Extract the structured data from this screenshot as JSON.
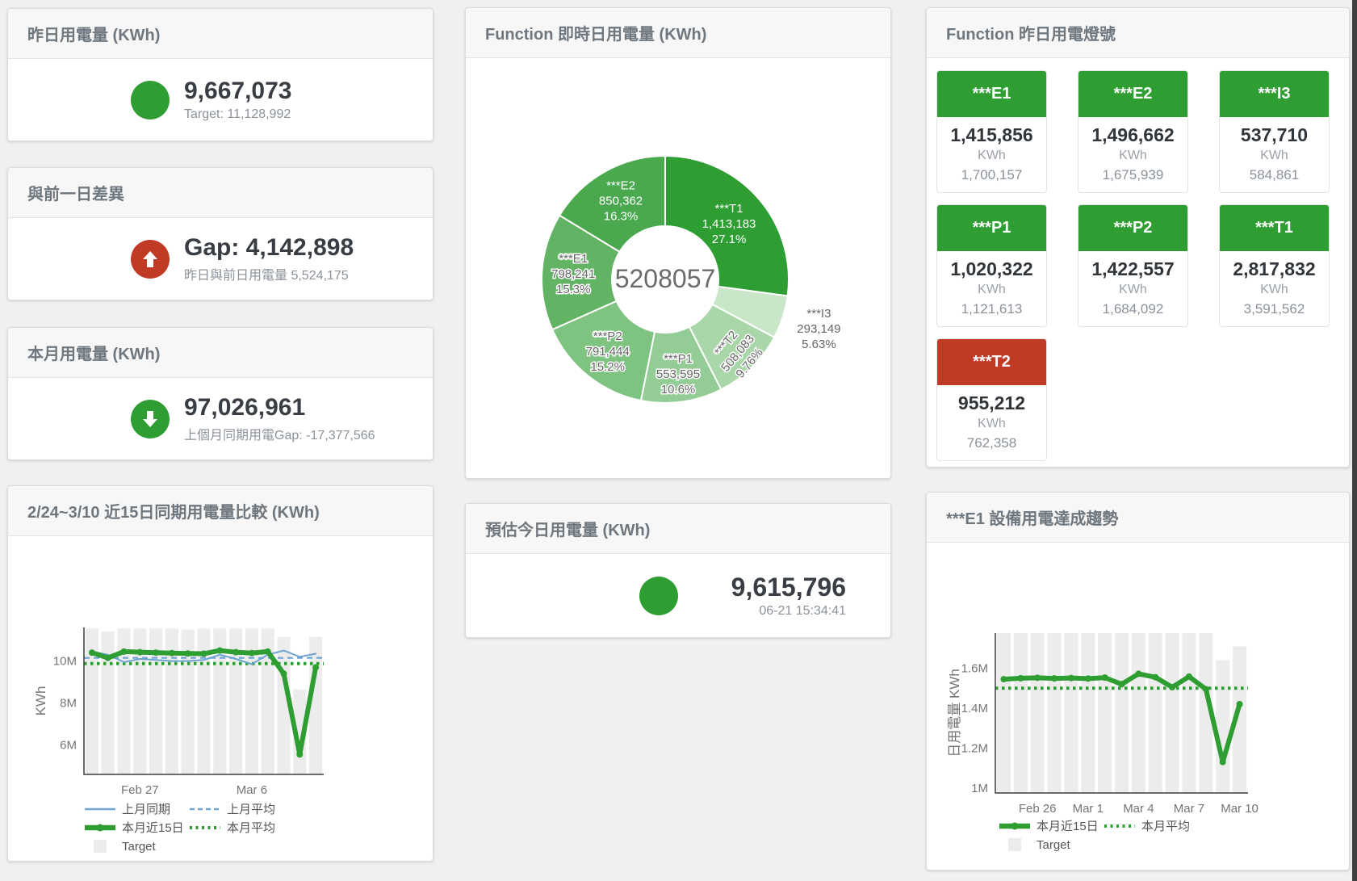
{
  "page": {
    "background": "#f0f0f0",
    "scrollbar_color": "#3f3f3f"
  },
  "colors": {
    "green": "#2e9d32",
    "red": "#c03a25",
    "bar": "#ececec",
    "blue": "#6fa3d0",
    "big_number": "#393e44",
    "subtitle": "#8b929a"
  },
  "cards": {
    "yesterday": {
      "title": "昨日用電量 (KWh)",
      "value": "9,667,073",
      "subtitle": "Target: 11,128,992",
      "status": "green"
    },
    "gap_prev_day": {
      "title": "與前一日差異",
      "value": "Gap: 4,142,898",
      "subtitle": "昨日與前日用電量 5,524,175",
      "status": "red",
      "arrow": "up"
    },
    "month": {
      "title": "本月用電量 (KWh)",
      "value": "97,026,961",
      "subtitle": "上個月同期用電Gap: -17,377,566",
      "status": "green",
      "arrow": "down"
    },
    "estimate_today": {
      "title": "預估今日用電量 (KWh)",
      "value": "9,615,796",
      "subtitle": "06-21 15:34:41",
      "status": "green"
    },
    "compare15": {
      "title": "2/24~3/10 近15日同期用電量比較 (KWh)"
    },
    "realtime_donut": {
      "title": "Function 即時日用電量 (KWh)"
    },
    "lamp_board": {
      "title": "Function 昨日用電燈號"
    },
    "e1_trend": {
      "title": "***E1 設備用電達成趨勢"
    }
  },
  "lamp_board": {
    "unit": "KWh",
    "tiles": [
      {
        "label": "***E1",
        "value": "1,415,856",
        "target": "1,700,157",
        "status": "green"
      },
      {
        "label": "***E2",
        "value": "1,496,662",
        "target": "1,675,939",
        "status": "green"
      },
      {
        "label": "***I3",
        "value": "537,710",
        "target": "584,861",
        "status": "green"
      },
      {
        "label": "***P1",
        "value": "1,020,322",
        "target": "1,121,613",
        "status": "green"
      },
      {
        "label": "***P2",
        "value": "1,422,557",
        "target": "1,684,092",
        "status": "green"
      },
      {
        "label": "***T1",
        "value": "2,817,832",
        "target": "3,591,562",
        "status": "green"
      },
      {
        "label": "***T2",
        "value": "955,212",
        "target": "762,358",
        "status": "red"
      }
    ]
  },
  "chart_data": [
    {
      "type": "pie",
      "title": "Function 即時日用電量 (KWh)",
      "center_total": "5208057",
      "legend_position": "none",
      "slices": [
        {
          "name": "***T1",
          "value": 1413183,
          "value_label": "1,413,183",
          "pct_label": "27.1%",
          "color": "#2e9d32",
          "text_color": "#ffffff",
          "label_r": 105
        },
        {
          "name": "***I3",
          "value": 293149,
          "value_label": "293,149",
          "pct_label": "5.63%",
          "color": "#c9e6c9",
          "text_color": "#666666",
          "label_outside": true
        },
        {
          "name": "***T2",
          "value": 508083,
          "value_label": "508,083",
          "pct_label": "9.76%",
          "color": "#aad7aa",
          "text_color": "#666666",
          "label_r": 128,
          "label_rotate": -50
        },
        {
          "name": "***P1",
          "value": 553595,
          "value_label": "553,595",
          "pct_label": "10.6%",
          "color": "#94cc95",
          "text_color": "#666666",
          "label_r": 118
        },
        {
          "name": "***P2",
          "value": 791444,
          "value_label": "791,444",
          "pct_label": "15.2%",
          "color": "#7fc380",
          "text_color": "#666666",
          "label_r": 114
        },
        {
          "name": "***E1",
          "value": 798241,
          "value_label": "798,241",
          "pct_label": "15.3%",
          "color": "#63b365",
          "text_color": "#666666",
          "label_r": 114
        },
        {
          "name": "***E2",
          "value": 850362,
          "value_label": "850,362",
          "pct_label": "16.3%",
          "color": "#4aa94e",
          "text_color": "#ffffff",
          "label_r": 112
        }
      ]
    },
    {
      "type": "bar+line",
      "title": "2/24~3/10 近15日同期用電量比較 (KWh)",
      "ylabel": "KWh",
      "unit": "M",
      "ylim": [
        4.6,
        11.6
      ],
      "grid": false,
      "yticks": [
        {
          "v": 6,
          "label": "6M"
        },
        {
          "v": 8,
          "label": "8M"
        },
        {
          "v": 10,
          "label": "10M"
        }
      ],
      "xticks": [
        {
          "i": 3,
          "label": "Feb 27"
        },
        {
          "i": 10,
          "label": "Mar 6"
        }
      ],
      "bar_color": "#ececec",
      "target_name": "Target",
      "target_bars": [
        11.55,
        11.4,
        11.55,
        11.55,
        11.55,
        11.55,
        11.5,
        11.55,
        11.55,
        11.55,
        11.55,
        11.55,
        11.15,
        8.65,
        11.15
      ],
      "series": [
        {
          "name": "上月同期",
          "style": "thin",
          "color": "#6fa3d0",
          "values": [
            10.45,
            10.3,
            9.95,
            10.1,
            10.05,
            10.0,
            10.0,
            10.05,
            10.3,
            10.1,
            9.85,
            10.3,
            10.5,
            10.2,
            10.35
          ]
        },
        {
          "name": "本月近15日",
          "style": "thick",
          "color": "#2e9d32",
          "values": [
            10.4,
            10.15,
            10.45,
            10.42,
            10.4,
            10.38,
            10.36,
            10.35,
            10.5,
            10.42,
            10.38,
            10.45,
            9.4,
            5.55,
            9.7
          ]
        }
      ],
      "avg_lines": [
        {
          "name": "上月平均",
          "style": "dashed",
          "color": "#6fa3d0",
          "value": 10.15
        },
        {
          "name": "本月平均",
          "style": "dotted",
          "color": "#2e9d32",
          "value": 9.88
        }
      ],
      "legend_rows": [
        [
          {
            "label": "上月同期",
            "style": "thin",
            "color": "#6fa3d0"
          },
          {
            "label": "上月平均",
            "style": "dashed",
            "color": "#6fa3d0"
          }
        ],
        [
          {
            "label": "本月近15日",
            "style": "thick",
            "color": "#2e9d32"
          },
          {
            "label": "本月平均",
            "style": "dotted",
            "color": "#2e9d32"
          }
        ],
        [
          {
            "label": "Target",
            "style": "box",
            "color": "#ececec"
          }
        ]
      ]
    },
    {
      "type": "bar+line",
      "title": "***E1 設備用電達成趨勢",
      "ylabel": "日用電量 KWh",
      "unit": "M",
      "ylim": [
        0.975,
        1.776
      ],
      "grid": false,
      "yticks": [
        {
          "v": 1,
          "label": "1M"
        },
        {
          "v": 1.2,
          "label": "1.2M"
        },
        {
          "v": 1.4,
          "label": "1.4M"
        },
        {
          "v": 1.6,
          "label": "1.6M"
        }
      ],
      "xticks": [
        {
          "i": 2,
          "label": "Feb 26"
        },
        {
          "i": 5,
          "label": "Mar 1"
        },
        {
          "i": 8,
          "label": "Mar 4"
        },
        {
          "i": 11,
          "label": "Mar 7"
        },
        {
          "i": 14,
          "label": "Mar 10"
        }
      ],
      "bar_color": "#ececec",
      "target_name": "Target",
      "target_bars": [
        1.776,
        1.776,
        1.776,
        1.776,
        1.776,
        1.776,
        1.776,
        1.776,
        1.776,
        1.776,
        1.776,
        1.776,
        1.776,
        1.64,
        1.71
      ],
      "series": [
        {
          "name": "本月近15日",
          "style": "thick",
          "color": "#2e9d32",
          "values": [
            1.545,
            1.55,
            1.552,
            1.549,
            1.551,
            1.548,
            1.553,
            1.52,
            1.572,
            1.555,
            1.505,
            1.558,
            1.495,
            1.13,
            1.42
          ]
        }
      ],
      "avg_lines": [
        {
          "name": "本月平均",
          "style": "dotted",
          "color": "#2e9d32",
          "value": 1.5
        }
      ],
      "legend_rows": [
        [
          {
            "label": "本月近15日",
            "style": "thick",
            "color": "#2e9d32"
          },
          {
            "label": "本月平均",
            "style": "dotted",
            "color": "#2e9d32"
          }
        ],
        [
          {
            "label": "Target",
            "style": "box",
            "color": "#ececec"
          }
        ]
      ]
    }
  ]
}
